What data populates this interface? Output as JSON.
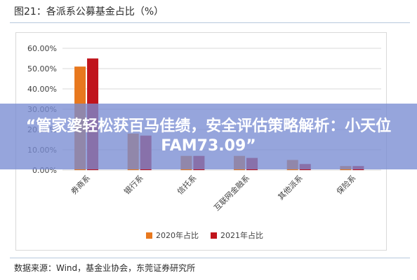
{
  "figure": {
    "title": "图21：各派系公募基金占比（%）",
    "source": "数据来源：Wind，基金业协会，东莞证券研究所"
  },
  "overlay": {
    "headline": "“管家婆轻松获百马佳绩，安全评估策略解析：小天位FAM73.09”"
  },
  "chart_data": {
    "type": "bar",
    "categories": [
      "券商系",
      "银行系",
      "信托系",
      "互联网金融系",
      "其他派系",
      "保险系"
    ],
    "series": [
      {
        "name": "2020年占比",
        "color": "#e8781e",
        "values": [
          51.0,
          18.0,
          7.0,
          7.0,
          5.0,
          2.0
        ]
      },
      {
        "name": "2021年占比",
        "color": "#c0141c",
        "values": [
          55.0,
          17.0,
          7.0,
          6.0,
          3.0,
          2.0
        ]
      }
    ],
    "ylim": [
      0,
      60
    ],
    "yticks": [
      "0.00%",
      "10.00%",
      "20.00%",
      "30.00%",
      "40.00%",
      "50.00%",
      "60.00%"
    ],
    "grid": true,
    "legend": "bottom"
  }
}
